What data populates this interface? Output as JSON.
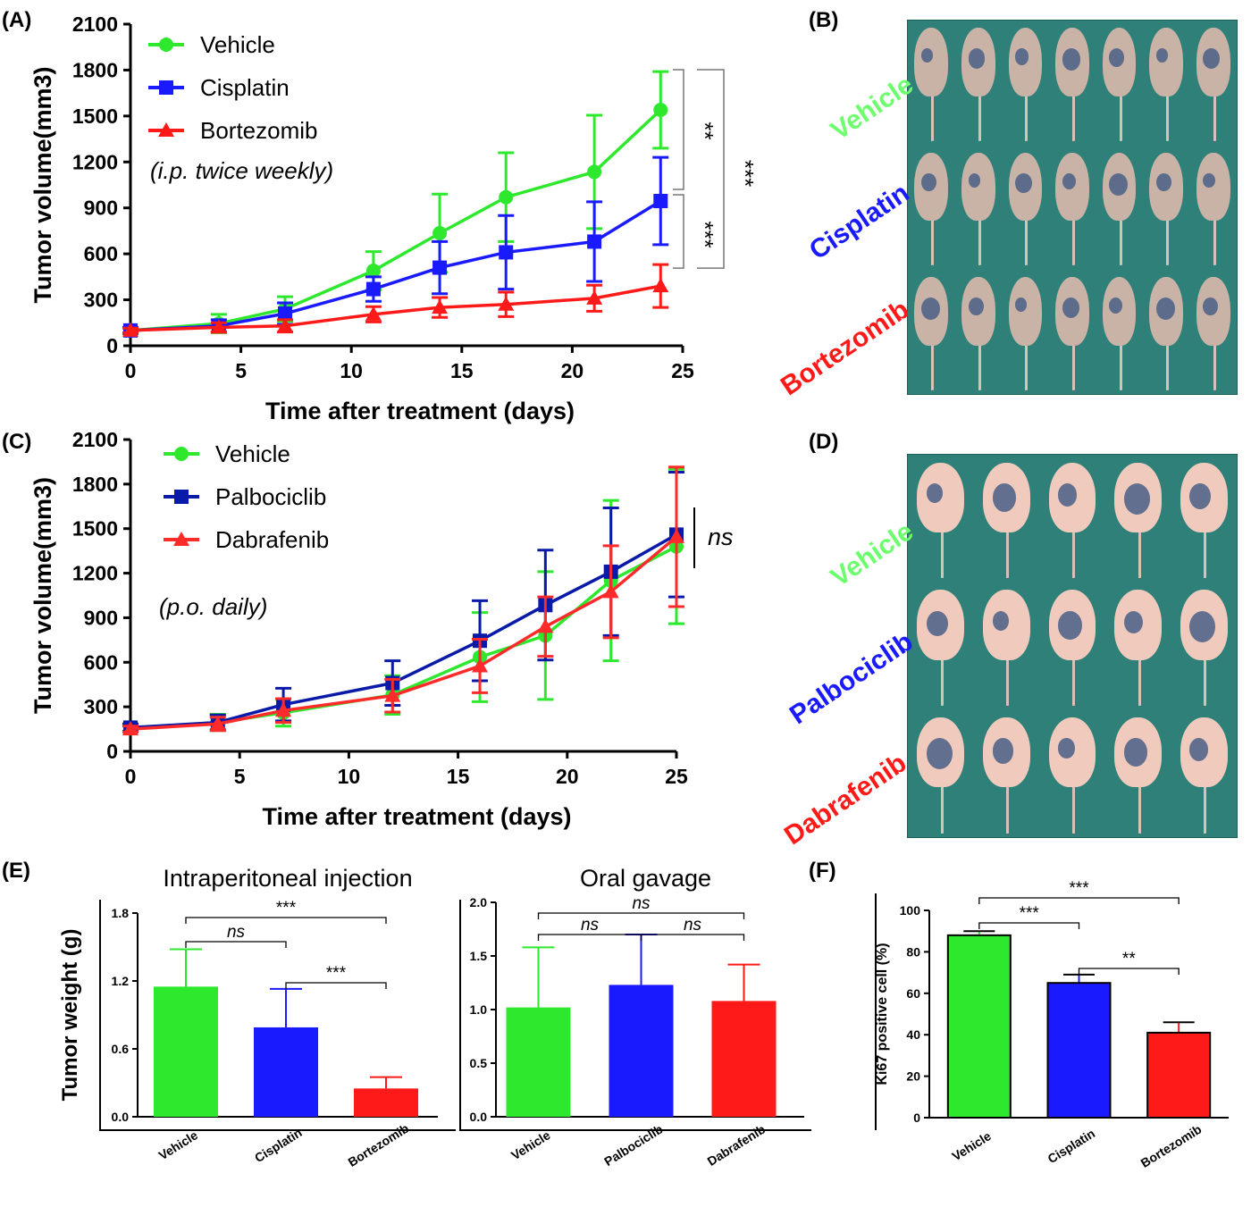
{
  "colors": {
    "vehicle": "#2ee82e",
    "cisplatin": "#1a1aff",
    "bortezomib": "#ff1a1a",
    "palbociclib": "#0a1aa8",
    "dabrafenib": "#ff2a2a",
    "vehicle_text": "#6dff6d"
  },
  "panels": {
    "A": "(A)",
    "B": "(B)",
    "C": "(C)",
    "D": "(D)",
    "E": "(E)",
    "F": "(F)"
  },
  "chart_data": [
    {
      "id": "A",
      "type": "line",
      "ylabel": "Tumor volume(mm3)",
      "xlabel": "Time after treatment (days)",
      "xlim": [
        0,
        25
      ],
      "ylim": [
        0,
        2100
      ],
      "xticks": [
        0,
        5,
        10,
        15,
        20,
        25
      ],
      "yticks": [
        0,
        300,
        600,
        900,
        1200,
        1500,
        1800,
        2100
      ],
      "annotation": "(i.p. twice weekly)",
      "legend_position": "top-left",
      "series": [
        {
          "name": "Vehicle",
          "color_key": "vehicle",
          "marker": "circle",
          "x": [
            0,
            4,
            7,
            11,
            14,
            17,
            21,
            24
          ],
          "y": [
            100,
            145,
            240,
            490,
            735,
            970,
            1135,
            1540
          ],
          "err": [
            20,
            60,
            80,
            125,
            255,
            290,
            370,
            250
          ]
        },
        {
          "name": "Cisplatin",
          "color_key": "cisplatin",
          "marker": "square",
          "x": [
            0,
            4,
            7,
            11,
            14,
            17,
            21,
            24
          ],
          "y": [
            100,
            130,
            210,
            370,
            510,
            610,
            680,
            945
          ],
          "err": [
            20,
            40,
            70,
            80,
            170,
            240,
            260,
            285
          ]
        },
        {
          "name": "Bortezomib",
          "color_key": "bortezomib",
          "marker": "triangle",
          "x": [
            0,
            4,
            7,
            11,
            14,
            17,
            21,
            24
          ],
          "y": [
            100,
            120,
            130,
            205,
            250,
            270,
            310,
            390
          ],
          "err": [
            15,
            30,
            40,
            50,
            65,
            80,
            85,
            140
          ]
        }
      ],
      "significance": [
        {
          "label": "**",
          "from": 1540,
          "to": 945
        },
        {
          "label": "***",
          "from": 945,
          "to": 390
        },
        {
          "label": "***",
          "from": 1540,
          "to": 390
        }
      ]
    },
    {
      "id": "C",
      "type": "line",
      "ylabel": "Tumor volume(mm3)",
      "xlabel": "Time after treatment (days)",
      "xlim": [
        0,
        25
      ],
      "ylim": [
        0,
        2100
      ],
      "xticks": [
        0,
        5,
        10,
        15,
        20,
        25
      ],
      "yticks": [
        0,
        300,
        600,
        900,
        1200,
        1500,
        1800,
        2100
      ],
      "annotation": "(p.o. daily)",
      "legend_position": "top-left",
      "series": [
        {
          "name": "Vehicle",
          "color_key": "vehicle",
          "marker": "circle",
          "x": [
            0,
            4,
            7,
            12,
            16,
            19,
            22,
            25
          ],
          "y": [
            155,
            195,
            260,
            380,
            635,
            780,
            1150,
            1380
          ],
          "err": [
            25,
            55,
            90,
            130,
            300,
            430,
            540,
            520
          ]
        },
        {
          "name": "Palbociclib",
          "color_key": "palbociclib",
          "marker": "square",
          "x": [
            0,
            4,
            7,
            12,
            16,
            19,
            22,
            25
          ],
          "y": [
            160,
            195,
            315,
            460,
            745,
            985,
            1210,
            1460
          ],
          "err": [
            25,
            50,
            110,
            150,
            270,
            370,
            430,
            420
          ]
        },
        {
          "name": "Dabrafenib",
          "color_key": "dabrafenib",
          "marker": "triangle",
          "x": [
            0,
            4,
            7,
            12,
            16,
            19,
            22,
            25
          ],
          "y": [
            150,
            185,
            275,
            375,
            575,
            840,
            1075,
            1445
          ],
          "err": [
            20,
            45,
            80,
            110,
            180,
            200,
            310,
            470
          ]
        }
      ],
      "significance": [
        {
          "label": "ns"
        }
      ]
    },
    {
      "id": "E1",
      "type": "bar",
      "title": "Intraperitoneal injection",
      "ylabel": "Tumor weight (g)",
      "ylim": [
        0,
        1.8
      ],
      "yticks": [
        "0.0",
        "0.6",
        "1.2",
        "1.8"
      ],
      "categories": [
        "Vehicle",
        "Cisplatin",
        "Bortezomib"
      ],
      "values": [
        1.15,
        0.79,
        0.25
      ],
      "err": [
        0.33,
        0.34,
        0.1
      ],
      "color_keys": [
        "vehicle",
        "cisplatin",
        "bortezomib"
      ],
      "significance": [
        {
          "a": 0,
          "b": 1,
          "label": "ns"
        },
        {
          "a": 1,
          "b": 2,
          "label": "***"
        },
        {
          "a": 0,
          "b": 2,
          "label": "***"
        }
      ]
    },
    {
      "id": "E2",
      "type": "bar",
      "title": "Oral gavage",
      "ylabel": "",
      "ylim": [
        0,
        2.0
      ],
      "yticks": [
        "0.0",
        "0.5",
        "1.0",
        "1.5",
        "2.0"
      ],
      "categories": [
        "Vehicle",
        "Palbociclib",
        "Dabrafenib"
      ],
      "values": [
        1.02,
        1.23,
        1.08
      ],
      "err": [
        0.56,
        0.47,
        0.34
      ],
      "color_keys": [
        "vehicle",
        "cisplatin",
        "bortezomib"
      ],
      "significance": [
        {
          "a": 0,
          "b": 1,
          "label": "ns"
        },
        {
          "a": 1,
          "b": 2,
          "label": "ns"
        },
        {
          "a": 0,
          "b": 2,
          "label": "ns"
        }
      ]
    },
    {
      "id": "F",
      "type": "bar",
      "title": "",
      "ylabel": "Ki67 positive cell (%)",
      "ylim": [
        0,
        100
      ],
      "yticks": [
        "0",
        "20",
        "40",
        "60",
        "80",
        "100"
      ],
      "categories": [
        "Vehicle",
        "Cisplatin",
        "Bortezomib"
      ],
      "values": [
        88,
        65,
        41
      ],
      "err": [
        2,
        4,
        5
      ],
      "color_keys": [
        "vehicle",
        "cisplatin",
        "bortezomib"
      ],
      "significance": [
        {
          "a": 0,
          "b": 1,
          "label": "***"
        },
        {
          "a": 1,
          "b": 2,
          "label": "**"
        },
        {
          "a": 0,
          "b": 2,
          "label": "***"
        }
      ]
    }
  ],
  "photoB": {
    "labels": [
      "Vehicle",
      "Cisplatin",
      "Bortezomib"
    ]
  },
  "photoD": {
    "labels": [
      "Vehicle",
      "Palbociclib",
      "Dabrafenib"
    ]
  }
}
